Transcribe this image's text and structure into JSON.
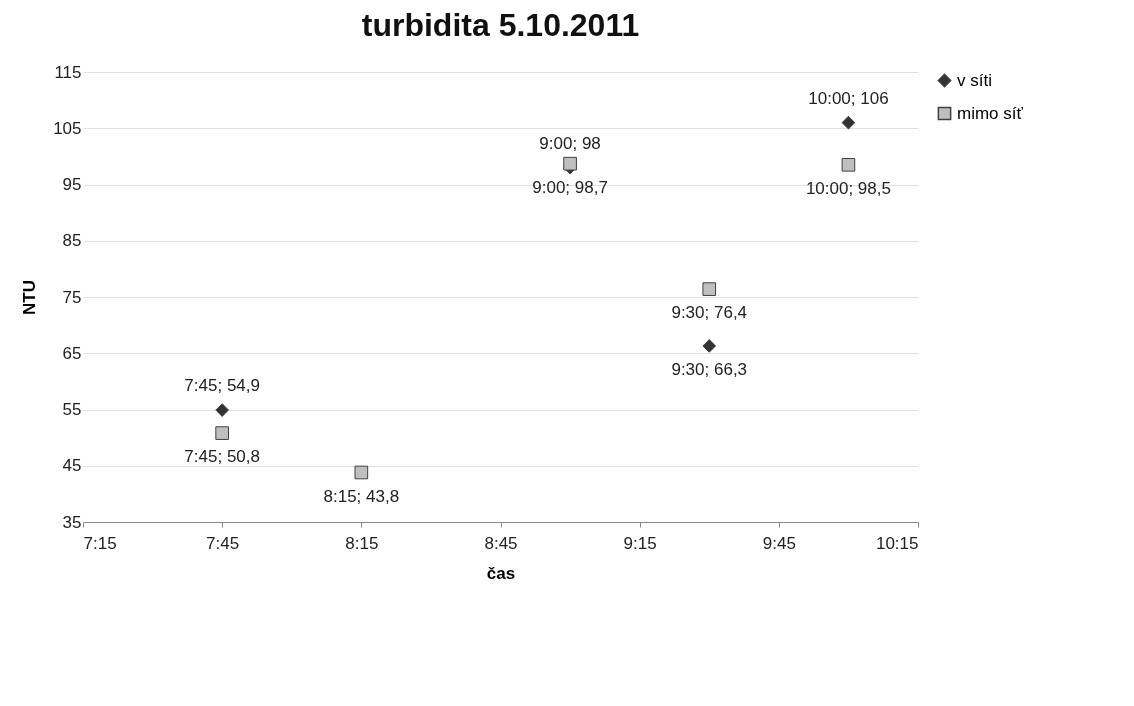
{
  "chart_data": {
    "type": "scatter",
    "title": "turbidita 5.10.2011",
    "xlabel": "čas",
    "ylabel": "NTU",
    "xlim": [
      7.25,
      10.25
    ],
    "xticks": [
      {
        "value": 7.25,
        "label": "7:15"
      },
      {
        "value": 7.75,
        "label": "7:45"
      },
      {
        "value": 8.25,
        "label": "8:15"
      },
      {
        "value": 8.75,
        "label": "8:45"
      },
      {
        "value": 9.25,
        "label": "9:15"
      },
      {
        "value": 9.75,
        "label": "9:45"
      },
      {
        "value": 10.25,
        "label": "10:15"
      }
    ],
    "ylim": [
      35,
      115
    ],
    "yticks": [
      35,
      45,
      55,
      65,
      75,
      85,
      95,
      105,
      115
    ],
    "grid": "y",
    "legend": "right",
    "series": [
      {
        "name": "v síti",
        "color": "#333333",
        "marker": "diamond",
        "x": [
          7.75,
          9,
          9.5,
          10
        ],
        "values": [
          54.9,
          98,
          66.3,
          106
        ],
        "value_labels": [
          "7:45; 54,9",
          "9:00; 98",
          "9:30; 66,3",
          "10:00; 106"
        ]
      },
      {
        "name": "mimo síť",
        "color": "#bfbfbf",
        "marker": "square",
        "x": [
          7.75,
          8.25,
          9,
          9.5,
          10
        ],
        "values": [
          50.8,
          43.8,
          98.7,
          76.4,
          98.5
        ],
        "value_labels": [
          "7:45; 50,8",
          "8:15; 43,8",
          "9:00; 98,7",
          "9:30; 76,4",
          "10:00; 98,5"
        ]
      }
    ]
  }
}
